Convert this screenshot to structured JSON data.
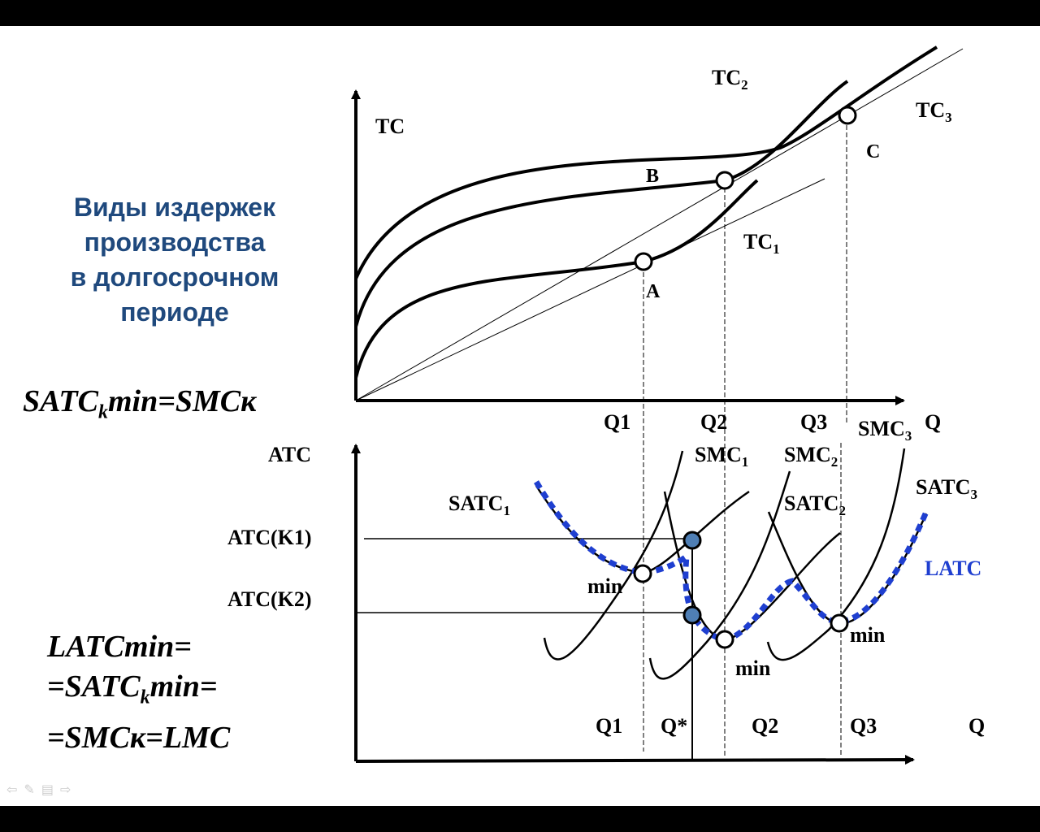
{
  "slide": {
    "title_lines": [
      "Виды издержек",
      "производства",
      "в долгосрочном",
      "периоде"
    ],
    "formula1": {
      "main": "SATC",
      "sub": "k",
      "rest": "min=SMCк"
    },
    "formula2": {
      "line1": "LATCmin=",
      "line2_main": "=SATC",
      "line2_sub": "k",
      "line2_rest": "min=",
      "line3": "=SMCк=LMC"
    }
  },
  "top_graph": {
    "y_axis": "TC",
    "x_axis": "Q",
    "x_ticks": [
      "Q1",
      "Q2",
      "Q3"
    ],
    "curves": [
      {
        "main": "TC",
        "sub": "1"
      },
      {
        "main": "TC",
        "sub": "2"
      },
      {
        "main": "TC",
        "sub": "3"
      }
    ],
    "points": [
      "A",
      "B",
      "C"
    ]
  },
  "bottom_graph": {
    "y_axis": "ATC",
    "x_axis": "Q",
    "x_ticks": [
      "Q1",
      "Q*",
      "Q2",
      "Q3"
    ],
    "levels": [
      "ATC(K1)",
      "ATC(K2)"
    ],
    "smc": [
      {
        "main": "SMC",
        "sub": "1"
      },
      {
        "main": "SMC",
        "sub": "2"
      },
      {
        "main": "SMC",
        "sub": "3"
      }
    ],
    "satc": [
      {
        "main": "SATC",
        "sub": "1"
      },
      {
        "main": "SATC",
        "sub": "2"
      },
      {
        "main": "SATC",
        "sub": "3"
      }
    ],
    "latc": "LATC",
    "min_label": "min",
    "colors": {
      "latc": "#1F3FD0",
      "filled_point": "#4F7FB5",
      "title": "#1F497D"
    }
  },
  "nav": {
    "icons": [
      "back-arrow-icon",
      "pen-icon",
      "menu-icon",
      "forward-arrow-icon"
    ]
  }
}
